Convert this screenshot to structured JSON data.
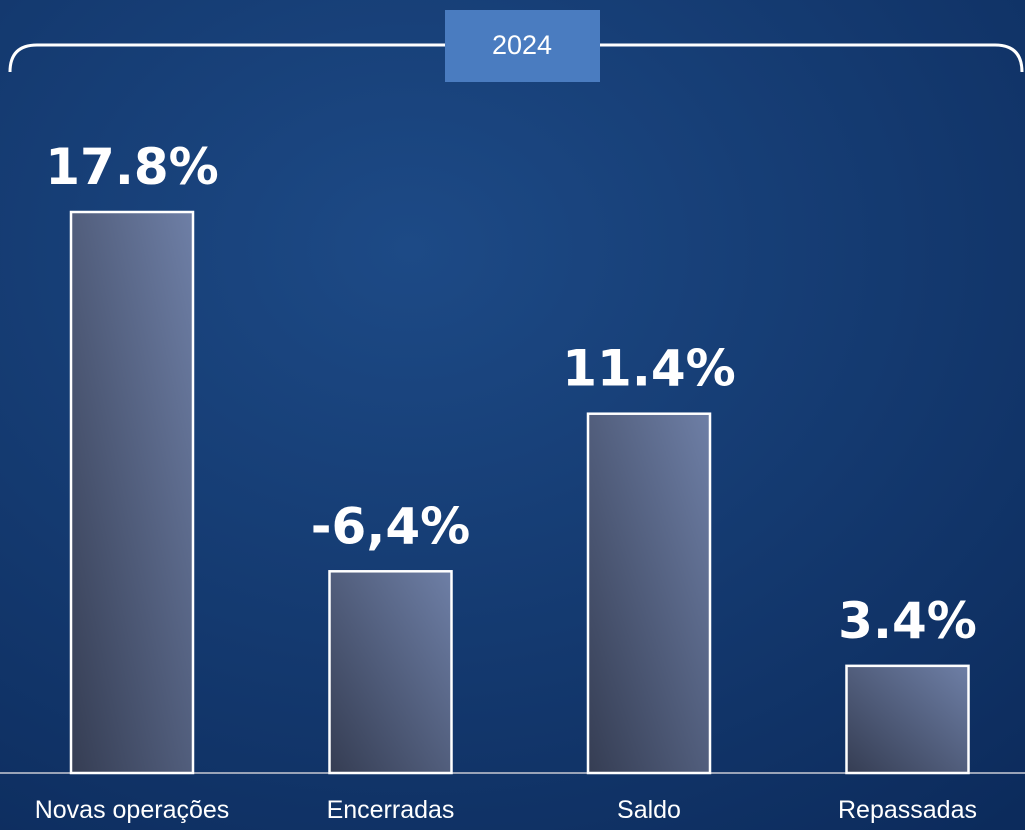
{
  "chart_data": {
    "type": "bar",
    "title": "2024",
    "categories": [
      "Novas operações",
      "Encerradas",
      "Saldo",
      "Repassadas"
    ],
    "values": [
      17.8,
      -6.4,
      11.4,
      3.4
    ],
    "value_labels": [
      "17.8%",
      "-6,4%",
      "11.4%",
      "3.4%"
    ],
    "color": "#5a6a8e"
  }
}
